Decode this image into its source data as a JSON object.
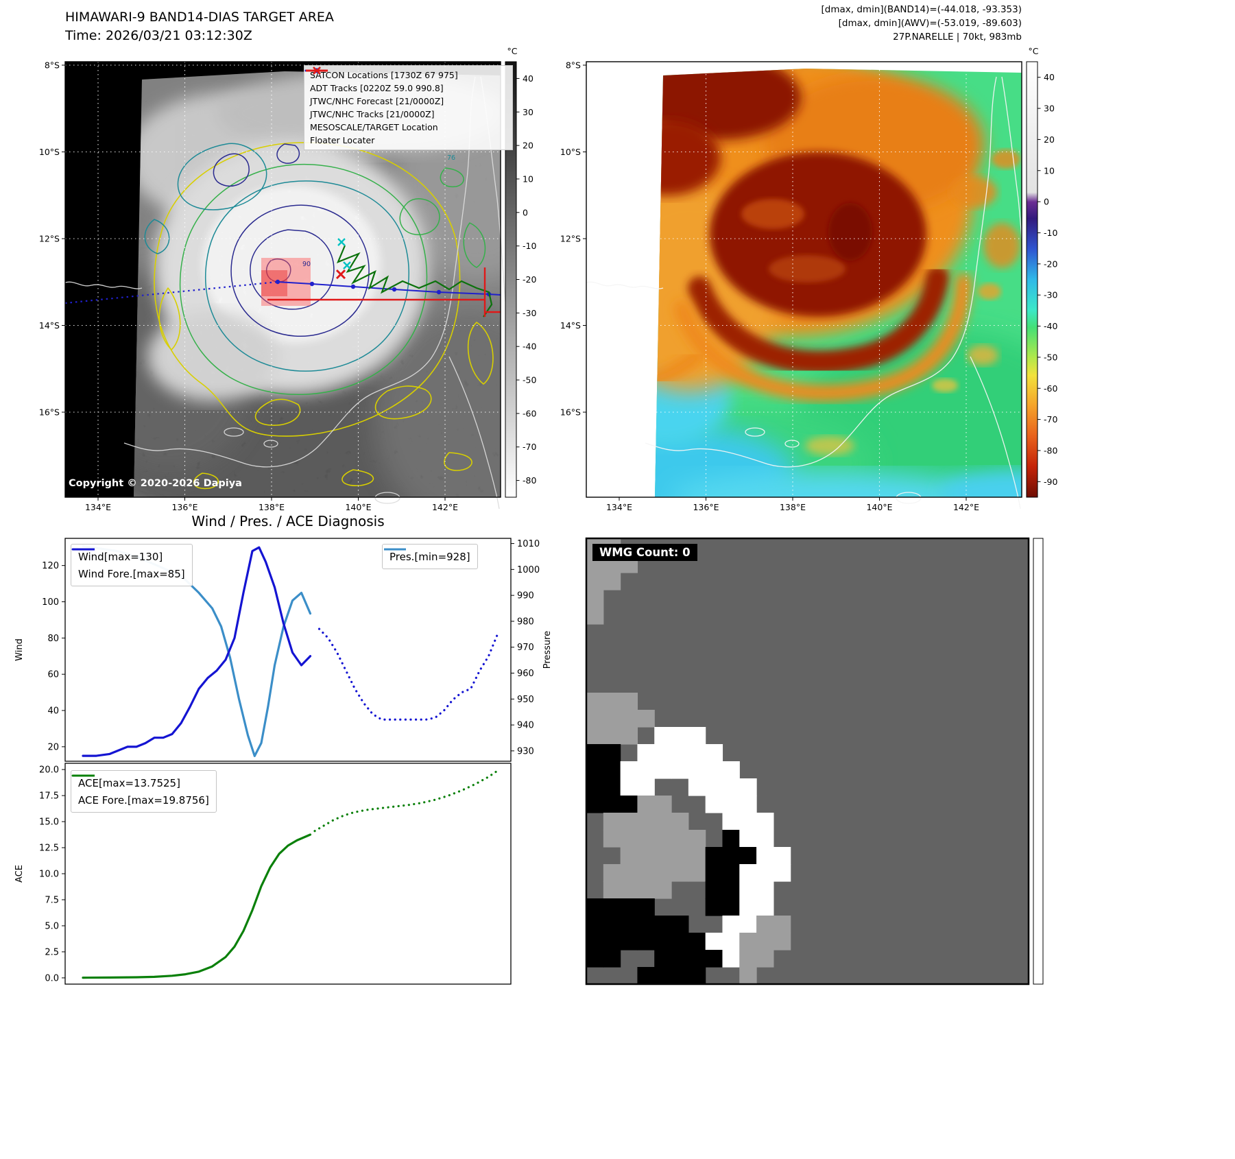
{
  "band14": {
    "title": "HIMAWARI-9 BAND14-DIAS TARGET AREA",
    "subtitle": "Time: 2026/03/21 03:12:30Z",
    "copyright": "Copyright © 2020-2026 Dapiya",
    "colorbar_unit": "°C",
    "lat_ticks": [
      "8°S",
      "10°S",
      "12°S",
      "14°S",
      "16°S"
    ],
    "lon_ticks": [
      "134°E",
      "136°E",
      "138°E",
      "140°E",
      "142°E"
    ],
    "colorbar_ticks": [
      40,
      30,
      20,
      10,
      0,
      -10,
      -20,
      -30,
      -40,
      -50,
      -60,
      -70,
      -80
    ],
    "contour_labels": [
      "90",
      "76"
    ],
    "legend": [
      {
        "label": "SATCON Locations [1730Z 67 975]",
        "marker": "x",
        "color": "#00c2c2"
      },
      {
        "label": "ADT Tracks [0220Z 59.0 990.8]",
        "marker": "line",
        "color": "#0c720c"
      },
      {
        "label": "JTWC/NHC Forecast [21/0000Z]",
        "marker": "dotted",
        "color": "#2020cc"
      },
      {
        "label": "JTWC/NHC Tracks [21/0000Z]",
        "marker": "line-dot",
        "color": "#2020cc"
      },
      {
        "label": "MESOSCALE/TARGET Location",
        "marker": "x",
        "color": "#e01818"
      },
      {
        "label": "Floater Locater",
        "marker": "line",
        "color": "#e01818"
      }
    ]
  },
  "awv": {
    "title_lines": [
      "[dmax, dmin](BAND14)=(-44.018, -93.353)",
      "[dmax, dmin](AWV)=(-53.019, -89.603)",
      "27P.NARELLE | 70kt, 983mb"
    ],
    "colorbar_unit": "°C",
    "lat_ticks": [
      "8°S",
      "10°S",
      "12°S",
      "14°S",
      "16°S"
    ],
    "lon_ticks": [
      "134°E",
      "136°E",
      "138°E",
      "140°E",
      "142°E"
    ],
    "colorbar_ticks": [
      40,
      30,
      20,
      10,
      0,
      -10,
      -20,
      -30,
      -40,
      -50,
      -60,
      -70,
      -80,
      -90
    ]
  },
  "diagnosis_title": "Wind / Pres. / ACE Diagnosis",
  "chart_data": [
    {
      "type": "line",
      "panel": "wind_pressure",
      "ylabel_left": "Wind",
      "ylabel_right": "Pressure",
      "ylim_left": [
        12,
        135
      ],
      "yticks_left": [
        "20",
        "40",
        "60",
        "80",
        "100",
        "120"
      ],
      "ylim_right": [
        926,
        1012
      ],
      "yticks_right": [
        "930",
        "940",
        "950",
        "960",
        "970",
        "980",
        "990",
        "1000",
        "1010"
      ],
      "series": [
        {
          "name": "Wind[max=130]",
          "axis": "left",
          "style": "solid",
          "color": "#1414d2",
          "x": [
            0.04,
            0.07,
            0.1,
            0.12,
            0.14,
            0.16,
            0.18,
            0.2,
            0.22,
            0.24,
            0.26,
            0.28,
            0.3,
            0.32,
            0.34,
            0.36,
            0.38,
            0.4,
            0.42,
            0.435,
            0.45,
            0.47,
            0.49,
            0.51,
            0.53,
            0.55
          ],
          "values": [
            15,
            15,
            16,
            18,
            20,
            20,
            22,
            25,
            25,
            27,
            33,
            42,
            52,
            58,
            62,
            68,
            80,
            105,
            128,
            130,
            122,
            108,
            88,
            72,
            65,
            70
          ]
        },
        {
          "name": "Wind Fore.[max=85]",
          "axis": "left",
          "style": "dotted",
          "color": "#1414d2",
          "x": [
            0.57,
            0.59,
            0.61,
            0.63,
            0.65,
            0.67,
            0.69,
            0.71,
            0.73,
            0.75,
            0.77,
            0.79,
            0.81,
            0.83,
            0.85,
            0.87,
            0.89,
            0.91,
            0.93,
            0.95,
            0.97
          ],
          "values": [
            85,
            80,
            72,
            62,
            52,
            44,
            38,
            35,
            35,
            35,
            35,
            35,
            35,
            36,
            40,
            46,
            50,
            52,
            62,
            70,
            82
          ]
        },
        {
          "name": "Pres.[min=928]",
          "axis": "right",
          "style": "solid",
          "color": "#3b8ec8",
          "x": [
            0.04,
            0.08,
            0.12,
            0.16,
            0.2,
            0.24,
            0.27,
            0.3,
            0.33,
            0.35,
            0.37,
            0.39,
            0.41,
            0.425,
            0.44,
            0.455,
            0.47,
            0.49,
            0.51,
            0.53,
            0.55
          ],
          "values": [
            1009,
            1008,
            1007,
            1005,
            1002,
            999,
            996,
            991,
            985,
            978,
            966,
            950,
            936,
            928,
            933,
            947,
            963,
            978,
            988,
            991,
            983
          ]
        }
      ]
    },
    {
      "type": "line",
      "panel": "ace",
      "ylabel_left": "ACE",
      "ylim_left": [
        -0.6,
        20.6
      ],
      "yticks_left": [
        "0.0",
        "2.5",
        "5.0",
        "7.5",
        "10.0",
        "12.5",
        "15.0",
        "17.5",
        "20.0"
      ],
      "series": [
        {
          "name": "ACE[max=13.7525]",
          "axis": "left",
          "style": "solid",
          "color": "#0a800a",
          "x": [
            0.04,
            0.1,
            0.16,
            0.2,
            0.24,
            0.27,
            0.3,
            0.33,
            0.36,
            0.38,
            0.4,
            0.42,
            0.44,
            0.46,
            0.48,
            0.5,
            0.52,
            0.55
          ],
          "values": [
            0.02,
            0.03,
            0.06,
            0.1,
            0.2,
            0.35,
            0.6,
            1.1,
            2.0,
            3.0,
            4.5,
            6.5,
            8.8,
            10.6,
            11.9,
            12.7,
            13.2,
            13.75
          ]
        },
        {
          "name": "ACE Fore.[max=19.8756]",
          "axis": "left",
          "style": "dotted",
          "color": "#0a800a",
          "x": [
            0.56,
            0.58,
            0.6,
            0.62,
            0.64,
            0.66,
            0.68,
            0.71,
            0.74,
            0.77,
            0.8,
            0.83,
            0.86,
            0.89,
            0.92,
            0.95,
            0.97
          ],
          "values": [
            14.1,
            14.6,
            15.1,
            15.5,
            15.8,
            16.0,
            16.15,
            16.3,
            16.45,
            16.6,
            16.8,
            17.1,
            17.5,
            18.0,
            18.6,
            19.3,
            19.88
          ]
        }
      ]
    }
  ],
  "wmg": {
    "label": "WMG Count: 0",
    "palette": {
      "d": "#636363",
      "s": "#9e9e9e",
      "w": "#ffffff",
      "b": "#000000"
    },
    "grid": [
      "ssdddddddddddddddddddddddd",
      "sssddddddddddddddddddddddd",
      "ssdddddddddddddddddddddddd",
      "sddddddddddddddddddddddddd",
      "sddddddddddddddddddddddddd",
      "dddddddddddddddddddddddddd",
      "dddddddddddddddddddddddddd",
      "dddddddddddddddddddddddddd",
      "dddddddddddddddddddddddddd",
      "sssddddddddddddddddddddddd",
      "ssssdddddddddddddddddddddd",
      "sssdwwwddddddddddddddddddd",
      "bbdwwwwwdddddddddddddddddd",
      "bbwwwwwwwddddddddddddddddd",
      "bbwwddwwwwdddddddddddddddd",
      "bbbssddwwwdddddddddddddddd",
      "dsssssddwwwddddddddddddddd",
      "dssssssdbwwddddddddddddddd",
      "ddsssssbbbwwdddddddddddddd",
      "dssssssbbwwwdddddddddddddd",
      "dssssddbbwwddddddddddddddd",
      "bbbbdddbbwwddddddddddddddd",
      "bbbbbbddwwssdddddddddddddd",
      "bbbbbbbwwsssdddddddddddddd",
      "bbddbbbbwssddddddddddddddd",
      "dddbbbbddsdddddddddddddddd"
    ]
  }
}
